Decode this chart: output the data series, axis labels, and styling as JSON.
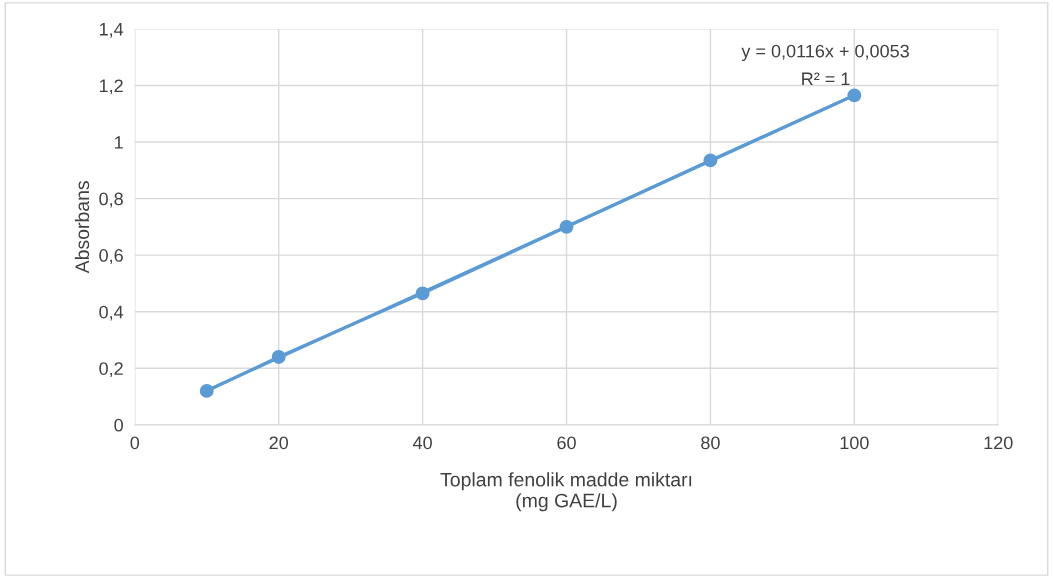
{
  "chart_data": {
    "type": "line",
    "xlabel": "Toplam fenolik madde miktarı\n(mg GAE/L)",
    "ylabel": "Absorbans",
    "series": [
      {
        "color": "#5b9bd5",
        "x": [
          10,
          20,
          40,
          60,
          80,
          100
        ],
        "values": [
          0.12,
          0.24,
          0.465,
          0.7,
          0.935,
          1.165
        ],
        "marker": "circle"
      },
      {
        "color": "#5b9bd5",
        "x": [
          10,
          100
        ],
        "values": [
          0.121,
          1.165
        ],
        "marker": "none"
      }
    ],
    "annotations": [
      "y = 0,0116x + 0,0053",
      "R² = 1"
    ],
    "xlim": [
      0,
      120
    ],
    "xticks": [
      0,
      20,
      40,
      60,
      80,
      100,
      120
    ],
    "ylim": [
      0,
      1.4
    ],
    "yticks": [
      0,
      {
        "value": 0.2,
        "label": "0,2"
      },
      {
        "value": 0.4,
        "label": "0,4"
      },
      {
        "value": 0.6,
        "label": "0,6"
      },
      {
        "value": 0.8,
        "label": "0,8"
      },
      1,
      {
        "value": 1.2,
        "label": "1,2"
      },
      {
        "value": 1.4,
        "label": "1,4"
      }
    ],
    "grid": true,
    "legend": false,
    "line_style": "solid"
  }
}
